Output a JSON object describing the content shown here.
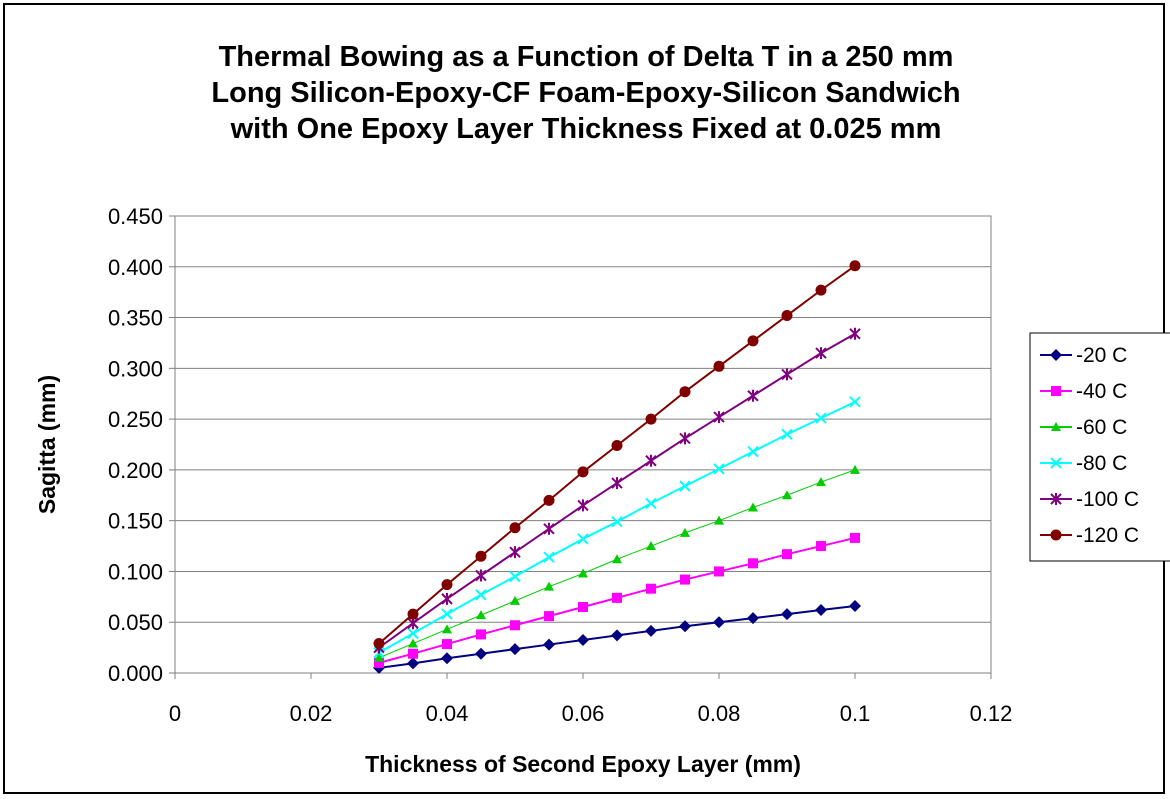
{
  "chart_data": {
    "type": "line",
    "title_lines": [
      "Thermal Bowing as a Function of Delta T in a 250 mm",
      "Long Silicon-Epoxy-CF Foam-Epoxy-Silicon Sandwich",
      "with One Epoxy Layer Thickness Fixed at 0.025 mm"
    ],
    "xlabel": "Thickness of Second Epoxy Layer (mm)",
    "ylabel": "Sagitta (mm)",
    "xlim": [
      0,
      0.12
    ],
    "ylim": [
      0,
      0.45
    ],
    "x_ticks": [
      {
        "value": 0,
        "label": "0"
      },
      {
        "value": 0.02,
        "label": "0.02"
      },
      {
        "value": 0.04,
        "label": "0.04"
      },
      {
        "value": 0.06,
        "label": "0.06"
      },
      {
        "value": 0.08,
        "label": "0.08"
      },
      {
        "value": 0.1,
        "label": "0.1"
      },
      {
        "value": 0.12,
        "label": "0.12"
      }
    ],
    "y_ticks": [
      {
        "value": 0,
        "label": "0.000"
      },
      {
        "value": 0.05,
        "label": "0.050"
      },
      {
        "value": 0.1,
        "label": "0.100"
      },
      {
        "value": 0.15,
        "label": "0.150"
      },
      {
        "value": 0.2,
        "label": "0.200"
      },
      {
        "value": 0.25,
        "label": "0.250"
      },
      {
        "value": 0.3,
        "label": "0.300"
      },
      {
        "value": 0.35,
        "label": "0.350"
      },
      {
        "value": 0.4,
        "label": "0.400"
      },
      {
        "value": 0.45,
        "label": "0.450"
      }
    ],
    "grid": "horizontal",
    "legend_position": "right",
    "x": [
      0.03,
      0.035,
      0.04,
      0.045,
      0.05,
      0.055,
      0.06,
      0.065,
      0.07,
      0.075,
      0.08,
      0.085,
      0.09,
      0.095,
      0.1
    ],
    "series": [
      {
        "name": "-20 C",
        "color": "#000080",
        "marker": "diamond",
        "values": [
          0.005,
          0.0095,
          0.0145,
          0.019,
          0.0235,
          0.028,
          0.0325,
          0.037,
          0.0415,
          0.046,
          0.05,
          0.054,
          0.058,
          0.062,
          0.066
        ]
      },
      {
        "name": "-40 C",
        "color": "#ff00ff",
        "marker": "square",
        "values": [
          0.01,
          0.019,
          0.0285,
          0.038,
          0.047,
          0.056,
          0.065,
          0.074,
          0.083,
          0.092,
          0.1,
          0.108,
          0.117,
          0.125,
          0.133
        ]
      },
      {
        "name": "-60 C",
        "color": "#00cc00",
        "marker": "triangle",
        "values": [
          0.015,
          0.029,
          0.043,
          0.057,
          0.071,
          0.085,
          0.098,
          0.112,
          0.125,
          0.138,
          0.15,
          0.163,
          0.175,
          0.188,
          0.2
        ]
      },
      {
        "name": "-80 C",
        "color": "#00ffff",
        "marker": "x",
        "values": [
          0.02,
          0.039,
          0.058,
          0.077,
          0.095,
          0.114,
          0.132,
          0.149,
          0.167,
          0.184,
          0.201,
          0.218,
          0.235,
          0.251,
          0.267
        ]
      },
      {
        "name": "-100 C",
        "color": "#800080",
        "marker": "star",
        "values": [
          0.025,
          0.049,
          0.073,
          0.096,
          0.119,
          0.142,
          0.165,
          0.187,
          0.209,
          0.231,
          0.252,
          0.273,
          0.294,
          0.315,
          0.334
        ]
      },
      {
        "name": "-120 C",
        "color": "#800000",
        "marker": "circle",
        "values": [
          0.029,
          0.058,
          0.087,
          0.115,
          0.143,
          0.17,
          0.198,
          0.224,
          0.25,
          0.277,
          0.302,
          0.327,
          0.352,
          0.377,
          0.401
        ]
      }
    ]
  }
}
